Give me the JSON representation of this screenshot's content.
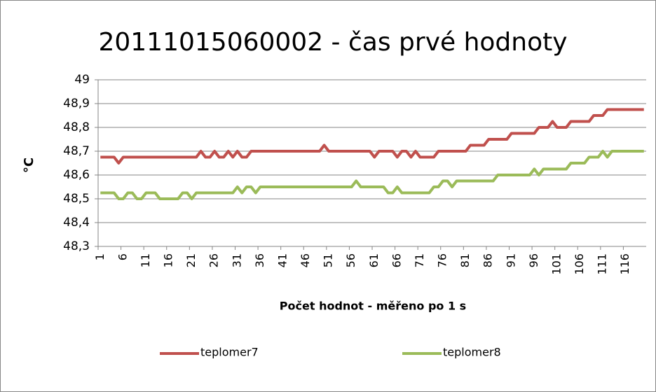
{
  "chart_data": {
    "type": "line",
    "title": "20111015060002 - čas prvé hodnoty",
    "x_label": "Počet hodnot - měřeno po 1 s",
    "y_label": "°C",
    "categories": [
      1,
      null,
      null,
      null,
      null,
      6,
      null,
      null,
      null,
      null,
      11,
      null,
      null,
      null,
      null,
      16,
      null,
      null,
      null,
      null,
      21,
      null,
      null,
      null,
      null,
      26,
      null,
      null,
      null,
      null,
      31,
      null,
      null,
      null,
      null,
      36,
      null,
      null,
      null,
      null,
      41,
      null,
      null,
      null,
      null,
      46,
      null,
      null,
      null,
      null,
      51,
      null,
      null,
      null,
      null,
      56,
      null,
      null,
      null,
      null,
      61,
      null,
      null,
      null,
      null,
      66,
      null,
      null,
      null,
      null,
      71,
      null,
      null,
      null,
      null,
      76,
      null,
      null,
      null,
      null,
      81,
      null,
      null,
      null,
      null,
      86,
      null,
      null,
      null,
      null,
      91,
      null,
      null,
      null,
      null,
      96,
      null,
      null,
      null,
      null,
      101,
      null,
      null,
      null,
      null,
      106,
      null,
      null,
      null,
      null,
      111,
      null,
      null,
      null,
      null,
      116,
      null,
      null,
      null,
      null
    ],
    "series": [
      {
        "name": "teplomer7",
        "color": "#c0504d",
        "values": [
          48.675,
          48.675,
          48.675,
          48.675,
          48.65,
          48.675,
          48.675,
          48.675,
          48.675,
          48.675,
          48.675,
          48.675,
          48.675,
          48.675,
          48.675,
          48.675,
          48.675,
          48.675,
          48.675,
          48.675,
          48.675,
          48.675,
          48.7,
          48.675,
          48.675,
          48.7,
          48.675,
          48.675,
          48.7,
          48.675,
          48.7,
          48.675,
          48.675,
          48.7,
          48.7,
          48.7,
          48.7,
          48.7,
          48.7,
          48.7,
          48.7,
          48.7,
          48.7,
          48.7,
          48.7,
          48.7,
          48.7,
          48.7,
          48.7,
          48.725,
          48.7,
          48.7,
          48.7,
          48.7,
          48.7,
          48.7,
          48.7,
          48.7,
          48.7,
          48.7,
          48.675,
          48.7,
          48.7,
          48.7,
          48.7,
          48.675,
          48.7,
          48.7,
          48.675,
          48.7,
          48.675,
          48.675,
          48.675,
          48.675,
          48.7,
          48.7,
          48.7,
          48.7,
          48.7,
          48.7,
          48.7,
          48.725,
          48.725,
          48.725,
          48.725,
          48.75,
          48.75,
          48.75,
          48.75,
          48.75,
          48.775,
          48.775,
          48.775,
          48.775,
          48.775,
          48.775,
          48.8,
          48.8,
          48.8,
          48.825,
          48.8,
          48.8,
          48.8,
          48.825,
          48.825,
          48.825,
          48.825,
          48.825,
          48.85,
          48.85,
          48.85,
          48.875,
          48.875,
          48.875,
          48.875,
          48.875,
          48.875,
          48.875,
          48.875,
          48.875
        ]
      },
      {
        "name": "teplomer8",
        "color": "#9bbb59",
        "values": [
          48.525,
          48.525,
          48.525,
          48.525,
          48.5,
          48.5,
          48.525,
          48.525,
          48.5,
          48.5,
          48.525,
          48.525,
          48.525,
          48.5,
          48.5,
          48.5,
          48.5,
          48.5,
          48.525,
          48.525,
          48.5,
          48.525,
          48.525,
          48.525,
          48.525,
          48.525,
          48.525,
          48.525,
          48.525,
          48.525,
          48.55,
          48.525,
          48.55,
          48.55,
          48.525,
          48.55,
          48.55,
          48.55,
          48.55,
          48.55,
          48.55,
          48.55,
          48.55,
          48.55,
          48.55,
          48.55,
          48.55,
          48.55,
          48.55,
          48.55,
          48.55,
          48.55,
          48.55,
          48.55,
          48.55,
          48.55,
          48.575,
          48.55,
          48.55,
          48.55,
          48.55,
          48.55,
          48.55,
          48.525,
          48.525,
          48.55,
          48.525,
          48.525,
          48.525,
          48.525,
          48.525,
          48.525,
          48.525,
          48.55,
          48.55,
          48.575,
          48.575,
          48.55,
          48.575,
          48.575,
          48.575,
          48.575,
          48.575,
          48.575,
          48.575,
          48.575,
          48.575,
          48.6,
          48.6,
          48.6,
          48.6,
          48.6,
          48.6,
          48.6,
          48.6,
          48.625,
          48.6,
          48.625,
          48.625,
          48.625,
          48.625,
          48.625,
          48.625,
          48.65,
          48.65,
          48.65,
          48.65,
          48.675,
          48.675,
          48.675,
          48.7,
          48.675,
          48.7,
          48.7,
          48.7,
          48.7,
          48.7,
          48.7,
          48.7,
          48.7
        ]
      }
    ],
    "ylim": [
      48.3,
      49
    ],
    "yticks": [
      {
        "value": 48.3,
        "label": "48,3"
      },
      {
        "value": 48.4,
        "label": "48,4"
      },
      {
        "value": 48.5,
        "label": "48,5"
      },
      {
        "value": 48.6,
        "label": "48,6"
      },
      {
        "value": 48.7,
        "label": "48,7"
      },
      {
        "value": 48.8,
        "label": "48,8"
      },
      {
        "value": 48.9,
        "label": "48,9"
      },
      49
    ],
    "grid": true,
    "legend": "bottom"
  }
}
